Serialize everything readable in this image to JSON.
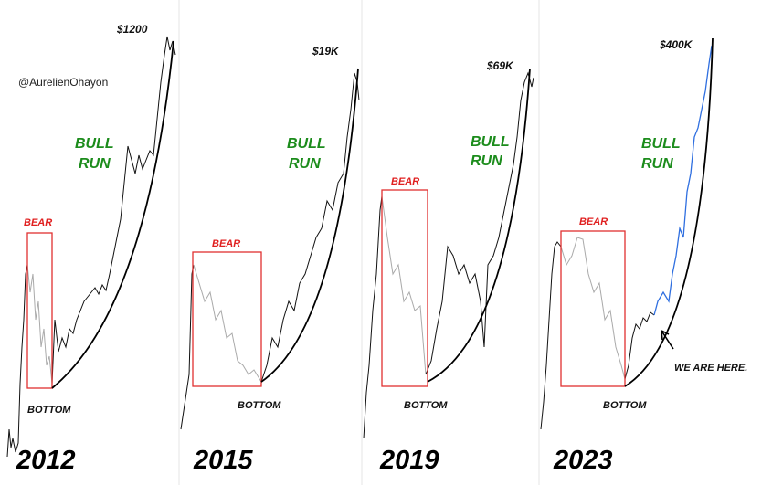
{
  "handle": "@AurelienOhayon",
  "panels": [
    {
      "year": "2012",
      "peak": "$1200",
      "bull": [
        "BULL",
        "RUN"
      ],
      "bear": "BEAR",
      "bottom": "BOTTOM"
    },
    {
      "year": "2015",
      "peak": "$19K",
      "bull": [
        "BULL",
        "RUN"
      ],
      "bear": "BEAR",
      "bottom": "BOTTOM"
    },
    {
      "year": "2019",
      "peak": "$69K",
      "bull": [
        "BULL",
        "RUN"
      ],
      "bear": "BEAR",
      "bottom": "BOTTOM"
    },
    {
      "year": "2023",
      "peak": "$400K",
      "bull": [
        "BULL",
        "RUN"
      ],
      "bear": "BEAR",
      "bottom": "BOTTOM",
      "note": "WE ARE HERE."
    }
  ]
}
